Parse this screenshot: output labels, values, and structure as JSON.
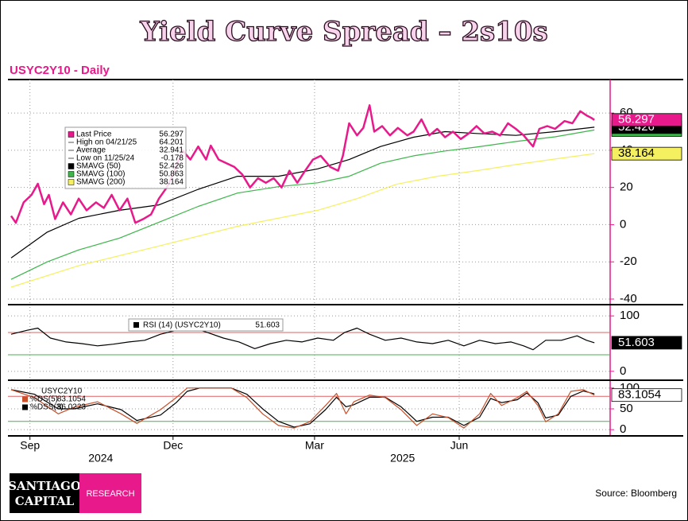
{
  "title": "Yield Curve Spread – 2s10s",
  "chart_data": [
    {
      "type": "line",
      "subtitle": "USYC2Y10 - Daily",
      "xlim": [
        -2,
        381
      ],
      "ylim": [
        -43,
        78
      ],
      "yticks": [
        60,
        40,
        20,
        0,
        -20,
        -40
      ],
      "grid": true,
      "series": [
        {
          "name": "Last Price",
          "color": "#e8198b",
          "last": 56.297,
          "x": [
            0,
            3,
            8,
            13,
            17,
            21,
            24,
            28,
            33,
            38,
            43,
            48,
            54,
            59,
            64,
            69,
            74,
            79,
            84,
            89,
            94,
            99,
            104,
            109,
            114,
            119,
            124,
            127,
            132,
            137,
            142,
            147,
            152,
            157,
            162,
            167,
            172,
            177,
            182,
            187,
            192,
            197,
            203,
            208,
            211,
            215,
            220,
            224,
            228,
            231,
            236,
            241,
            246,
            252,
            256,
            261,
            266,
            271,
            276,
            281,
            286,
            291,
            296,
            301,
            306,
            311,
            316,
            321,
            326,
            332,
            336,
            341,
            346,
            352,
            357,
            362,
            366,
            369,
            371
          ],
          "values": [
            4.7,
            1,
            12,
            16,
            22,
            11,
            16,
            3,
            12,
            5.5,
            14,
            7.7,
            12,
            9,
            16,
            7.7,
            14,
            1,
            3,
            5.5,
            14,
            20,
            29,
            40,
            35,
            42,
            35,
            42.5,
            35,
            33,
            31,
            27,
            20,
            25,
            22.5,
            25,
            20,
            29,
            22.5,
            29,
            35,
            37,
            31,
            29,
            37,
            54.5,
            48,
            52,
            64.2,
            50,
            53,
            48,
            52,
            48,
            50,
            56.6,
            48,
            51.5,
            47,
            50,
            46,
            49,
            53,
            49,
            50,
            48,
            54.5,
            51.5,
            48,
            42,
            51.5,
            53,
            51.5,
            55.7,
            54.5,
            61,
            58.7,
            57.4,
            56.3
          ]
        },
        {
          "name": "SMAVG (50)",
          "color": "#000000",
          "last": 52.426,
          "x": [
            0,
            23,
            43,
            69,
            94,
            119,
            144,
            170,
            195,
            215,
            235,
            256,
            276,
            296,
            321,
            346,
            371
          ],
          "values": [
            -17.9,
            -4,
            3.4,
            7.7,
            10.6,
            19,
            26,
            26,
            30,
            35,
            42,
            47,
            50,
            49,
            48,
            50,
            52.4
          ]
        },
        {
          "name": "SMAVG (100)",
          "color": "#3cb54a",
          "last": 50.863,
          "x": [
            0,
            23,
            43,
            69,
            94,
            119,
            144,
            170,
            195,
            215,
            235,
            256,
            276,
            296,
            321,
            346,
            371
          ],
          "values": [
            -29.4,
            -20,
            -13.6,
            -7.2,
            1.3,
            9.8,
            17,
            20.4,
            22.5,
            26,
            33,
            37,
            39.6,
            41.7,
            44.7,
            47.2,
            50.9
          ]
        },
        {
          "name": "SMAVG (200)",
          "color": "#f5f060",
          "last": 38.164,
          "x": [
            0,
            43,
            94,
            144,
            195,
            220,
            245,
            271,
            296,
            321,
            346,
            371
          ],
          "values": [
            -33.6,
            -22,
            -11.5,
            -0.9,
            7.7,
            14,
            21.7,
            26,
            29,
            32.3,
            35.3,
            38.2
          ]
        }
      ],
      "stats": [
        {
          "label": "High on 04/21/25",
          "value": 64.201
        },
        {
          "label": "Average",
          "value": 32.941
        },
        {
          "label": "Low on 11/25/24",
          "value": -0.178
        }
      ]
    },
    {
      "type": "line",
      "xlim": [
        -2,
        381
      ],
      "ylim": [
        -16,
        116
      ],
      "yticks": [
        100,
        0
      ],
      "grid": true,
      "ref_lines": [
        {
          "value": 70,
          "color": "#e06060"
        },
        {
          "value": 30,
          "color": "#4caf50"
        }
      ],
      "series": [
        {
          "name": "RSI (14) (USYC2Y10)",
          "color": "#000000",
          "last": 51.603,
          "x": [
            0,
            10,
            17,
            25,
            35,
            45,
            55,
            65,
            75,
            85,
            95,
            105,
            115,
            125,
            135,
            145,
            155,
            165,
            175,
            185,
            195,
            205,
            212,
            220,
            228,
            238,
            248,
            258,
            268,
            278,
            288,
            298,
            308,
            318,
            326,
            332,
            340,
            350,
            360,
            366,
            371
          ],
          "values": [
            67,
            74,
            78,
            60,
            53,
            50,
            46,
            49,
            53,
            56,
            67,
            74,
            79,
            70,
            60,
            53,
            41,
            50,
            56,
            53,
            60,
            56,
            70,
            78,
            67,
            56,
            60,
            53,
            50,
            56,
            46,
            56,
            50,
            53,
            46,
            39,
            56,
            56,
            64,
            56,
            51.6
          ]
        }
      ]
    },
    {
      "type": "line",
      "xlim": [
        -2,
        381
      ],
      "ylim": [
        -15,
        115
      ],
      "yticks": [
        100,
        50,
        0
      ],
      "grid": true,
      "legend_title": "USYC2Y10",
      "ref_lines": [
        {
          "value": 80,
          "color": "#e06060"
        },
        {
          "value": 20,
          "color": "#4caf50"
        }
      ],
      "xticks": [
        {
          "value": 12,
          "label": "Sep"
        },
        {
          "value": 103,
          "label": "Dec"
        },
        {
          "value": 193,
          "label": "Mar"
        },
        {
          "value": 285,
          "label": "Jun"
        }
      ],
      "year_ticks": [
        {
          "value": 57,
          "label": "2024"
        },
        {
          "value": 249,
          "label": "2025"
        }
      ],
      "series": [
        {
          "name": "%DS(5)",
          "color": "#c8502a",
          "last": 83.1054,
          "box_color": "#ffffff",
          "x": [
            0,
            15,
            30,
            40,
            55,
            70,
            80,
            95,
            105,
            112,
            120,
            130,
            140,
            150,
            160,
            170,
            180,
            190,
            200,
            207,
            213,
            218,
            228,
            238,
            248,
            258,
            268,
            278,
            288,
            298,
            305,
            312,
            322,
            328,
            335,
            340,
            348,
            356,
            364,
            371
          ],
          "values": [
            96,
            77,
            38,
            54,
            67,
            38,
            15,
            48,
            77,
            100,
            100,
            100,
            100,
            77,
            38,
            10,
            4,
            19,
            58,
            87,
            38,
            67,
            83,
            77,
            48,
            10,
            38,
            29,
            4,
            38,
            87,
            58,
            77,
            92,
            58,
            19,
            38,
            92,
            96,
            83
          ]
        },
        {
          "name": "%DSS(3)",
          "color": "#000000",
          "last": 86.0223,
          "x": [
            0,
            15,
            30,
            40,
            55,
            70,
            80,
            95,
            105,
            112,
            120,
            130,
            140,
            150,
            160,
            170,
            180,
            190,
            200,
            207,
            213,
            218,
            228,
            238,
            248,
            258,
            268,
            278,
            288,
            298,
            305,
            312,
            322,
            328,
            335,
            340,
            348,
            356,
            364,
            371
          ],
          "values": [
            96,
            85,
            50,
            50,
            62,
            48,
            22,
            35,
            65,
            92,
            100,
            100,
            100,
            85,
            50,
            20,
            6,
            14,
            48,
            78,
            55,
            60,
            78,
            78,
            55,
            20,
            30,
            30,
            10,
            30,
            75,
            65,
            72,
            88,
            65,
            28,
            35,
            80,
            93,
            86
          ]
        }
      ]
    }
  ],
  "footer": {
    "logo_top": "SANTIAGO",
    "logo_bottom": "CAPITAL",
    "badge": "RESEARCH",
    "source": "Source: Bloomberg"
  }
}
